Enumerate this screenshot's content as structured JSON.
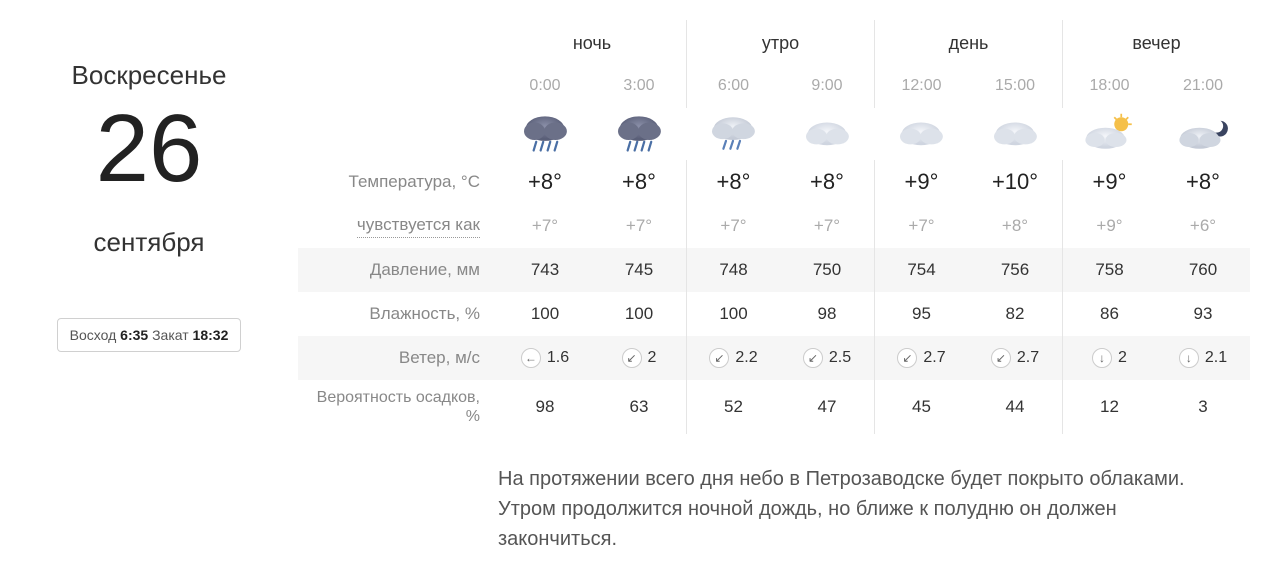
{
  "date": {
    "weekday": "Воскресенье",
    "day": "26",
    "month": "сентября"
  },
  "sun": {
    "rise_label": "Восход",
    "rise_time": "6:35",
    "set_label": "Закат",
    "set_time": "18:32"
  },
  "periods": [
    {
      "label": "ночь"
    },
    {
      "label": "утро"
    },
    {
      "label": "день"
    },
    {
      "label": "вечер"
    }
  ],
  "hours": [
    {
      "time": "0:00",
      "icon": "rain-heavy",
      "temp": "+8°",
      "feels": "+7°",
      "pressure": "743",
      "humidity": "100",
      "wind_dir": "←",
      "wind_speed": "1.6",
      "precip": "98"
    },
    {
      "time": "3:00",
      "icon": "rain-heavy",
      "temp": "+8°",
      "feels": "+7°",
      "pressure": "745",
      "humidity": "100",
      "wind_dir": "↙",
      "wind_speed": "2",
      "precip": "63"
    },
    {
      "time": "6:00",
      "icon": "rain-light",
      "temp": "+8°",
      "feels": "+7°",
      "pressure": "748",
      "humidity": "100",
      "wind_dir": "↙",
      "wind_speed": "2.2",
      "precip": "52"
    },
    {
      "time": "9:00",
      "icon": "cloud",
      "temp": "+8°",
      "feels": "+7°",
      "pressure": "750",
      "humidity": "98",
      "wind_dir": "↙",
      "wind_speed": "2.5",
      "precip": "47"
    },
    {
      "time": "12:00",
      "icon": "cloud",
      "temp": "+9°",
      "feels": "+7°",
      "pressure": "754",
      "humidity": "95",
      "wind_dir": "↙",
      "wind_speed": "2.7",
      "precip": "45"
    },
    {
      "time": "15:00",
      "icon": "cloud",
      "temp": "+10°",
      "feels": "+8°",
      "pressure": "756",
      "humidity": "82",
      "wind_dir": "↙",
      "wind_speed": "2.7",
      "precip": "44"
    },
    {
      "time": "18:00",
      "icon": "cloud-sun",
      "temp": "+9°",
      "feels": "+9°",
      "pressure": "758",
      "humidity": "86",
      "wind_dir": "↓",
      "wind_speed": "2",
      "precip": "12"
    },
    {
      "time": "21:00",
      "icon": "cloud-moon",
      "temp": "+8°",
      "feels": "+6°",
      "pressure": "760",
      "humidity": "93",
      "wind_dir": "↓",
      "wind_speed": "2.1",
      "precip": "3"
    }
  ],
  "rows": {
    "temp": "Температура, °C",
    "feels": "чувствуется как",
    "pressure": "Давление, мм",
    "humidity": "Влажность, %",
    "wind": "Ветер, м/с",
    "precip": "Вероятность осадков, %"
  },
  "summary": "На протяжении всего дня небо в Петрозаводске будет покрыто облаками. Утром продолжится ночной дождь, но ближе к полудню он должен закончиться.",
  "colors": {
    "background": "#ffffff",
    "text_primary": "#333333",
    "text_muted": "#aaaaaa",
    "shade_bg": "#f6f6f6",
    "border": "#e5e5e5"
  },
  "icon_svg": {
    "rain-heavy": "<svg viewBox='0 0 64 48'><defs><radialGradient id='g1' cx='50%' cy='40%'><stop offset='0%' stop-color='#8a8fa8'/><stop offset='100%' stop-color='#5a5f78'/></radialGradient></defs><ellipse cx='32' cy='19' rx='22' ry='14' fill='url(#g1)'/><ellipse cx='20' cy='22' rx='12' ry='10' fill='#6b7088'/><ellipse cx='44' cy='22' rx='13' ry='10' fill='#6b7088'/><line x1='22' y1='34' x2='19' y2='44' stroke='#4a6fa5' stroke-width='2.5' stroke-linecap='round'/><line x1='30' y1='34' x2='27' y2='44' stroke='#4a6fa5' stroke-width='2.5' stroke-linecap='round'/><line x1='38' y1='34' x2='35' y2='44' stroke='#4a6fa5' stroke-width='2.5' stroke-linecap='round'/><line x1='46' y1='34' x2='43' y2='44' stroke='#4a6fa5' stroke-width='2.5' stroke-linecap='round'/></svg>",
    "rain-light": "<svg viewBox='0 0 64 48'><defs><radialGradient id='g2' cx='50%' cy='40%'><stop offset='0%' stop-color='#eef1f6'/><stop offset='100%' stop-color='#c4cad6'/></radialGradient></defs><ellipse cx='32' cy='19' rx='22' ry='13' fill='url(#g2)'/><ellipse cx='20' cy='22' rx='12' ry='9' fill='#d0d6e0'/><ellipse cx='44' cy='22' rx='13' ry='9' fill='#d0d6e0'/><line x1='24' y1='33' x2='21' y2='42' stroke='#5a80b8' stroke-width='2.5' stroke-linecap='round'/><line x1='32' y1='33' x2='29' y2='42' stroke='#5a80b8' stroke-width='2.5' stroke-linecap='round'/><line x1='40' y1='33' x2='37' y2='42' stroke='#5a80b8' stroke-width='2.5' stroke-linecap='round'/></svg>",
    "cloud": "<svg viewBox='0 0 64 48'><defs><radialGradient id='g3' cx='50%' cy='40%'><stop offset='0%' stop-color='#f4f6fa'/><stop offset='100%' stop-color='#cfd5e0'/></radialGradient></defs><ellipse cx='32' cy='25' rx='22' ry='13' fill='url(#g3)'/><ellipse cx='20' cy='28' rx='12' ry='9' fill='#dde2ea'/><ellipse cx='44' cy='28' rx='13' ry='9' fill='#dde2ea'/></svg>",
    "cloud-sun": "<svg viewBox='0 0 64 48'><circle cx='46' cy='14' r='8' fill='#f5c04a'/><g stroke='#f5c04a' stroke-width='2'><line x1='46' y1='2' x2='46' y2='6'/><line x1='58' y1='14' x2='54' y2='14'/><line x1='54' y1='6' x2='51' y2='9'/><line x1='38' y1='6' x2='41' y2='9'/></g><defs><radialGradient id='g4' cx='50%' cy='40%'><stop offset='0%' stop-color='#f4f6fa'/><stop offset='100%' stop-color='#cfd5e0'/></radialGradient></defs><ellipse cx='28' cy='30' rx='22' ry='12' fill='url(#g4)'/><ellipse cx='16' cy='32' rx='11' ry='8' fill='#dde2ea'/><ellipse cx='40' cy='32' rx='12' ry='8' fill='#dde2ea'/></svg>",
    "cloud-moon": "<svg viewBox='0 0 64 48'><path d='M52 10a9 9 0 1 1-9 12 7 7 0 0 0 9-12z' fill='#3a4460'/><defs><radialGradient id='g5' cx='50%' cy='40%'><stop offset='0%' stop-color='#eef1f6'/><stop offset='100%' stop-color='#c4cad6'/></radialGradient></defs><ellipse cx='28' cy='30' rx='22' ry='12' fill='url(#g5)'/><ellipse cx='16' cy='32' rx='11' ry='8' fill='#d0d6e0'/><ellipse cx='40' cy='32' rx='12' ry='8' fill='#d0d6e0'/></svg>"
  }
}
